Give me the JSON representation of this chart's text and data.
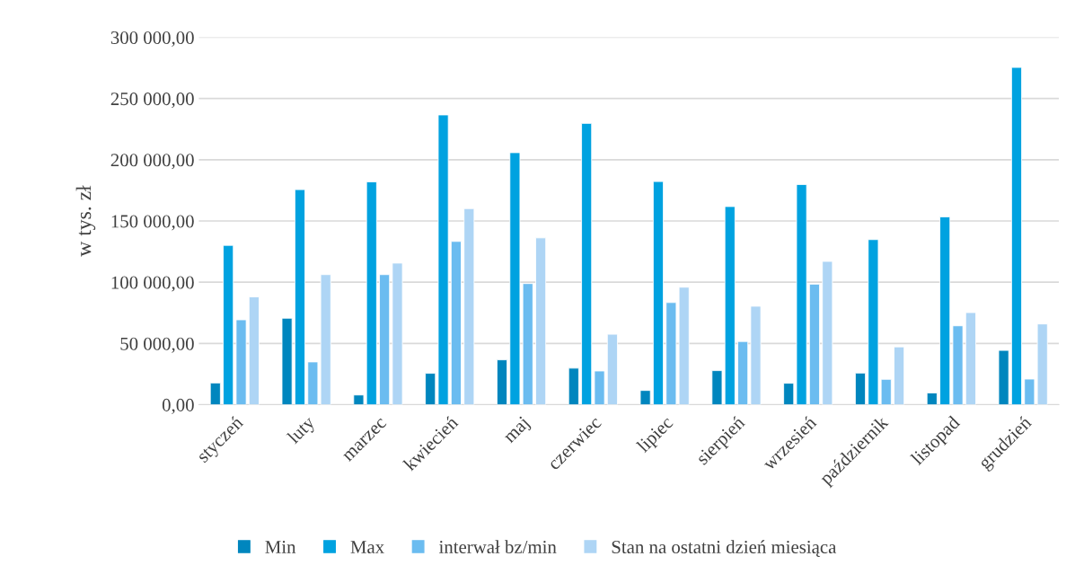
{
  "chart_data": {
    "type": "bar",
    "ylabel": "w tys. zł",
    "categories": [
      "styczeń",
      "luty",
      "marzec",
      "kwiecień",
      "maj",
      "czerwiec",
      "lipiec",
      "sierpień",
      "wrzesień",
      "październik",
      "listopad",
      "grudzień"
    ],
    "series": [
      {
        "name": "Min",
        "color": "#0086be",
        "values": [
          17700,
          70600,
          7900,
          25600,
          36600,
          29800,
          11600,
          27800,
          17500,
          25800,
          9600,
          44300
        ]
      },
      {
        "name": "Max",
        "color": "#00a2e0",
        "values": [
          130100,
          175600,
          182000,
          236600,
          205800,
          229700,
          182200,
          161800,
          179800,
          134800,
          153400,
          275400
        ]
      },
      {
        "name": "interwał bz/min",
        "color": "#6bbcf0",
        "values": [
          69300,
          34900,
          106200,
          133300,
          98900,
          27500,
          83400,
          51600,
          98400,
          20700,
          64400,
          20900
        ]
      },
      {
        "name": "Stan na ostatni dzień miesiąca",
        "color": "#aed5f5",
        "values": [
          88000,
          106200,
          115600,
          160100,
          136200,
          57500,
          95900,
          80400,
          117000,
          47200,
          75200,
          65900
        ]
      }
    ],
    "ylim": [
      0,
      300000
    ],
    "yticks": [
      {
        "value": 0,
        "label": "0,00"
      },
      {
        "value": 50000,
        "label": "50 000,00"
      },
      {
        "value": 100000,
        "label": "100 000,00"
      },
      {
        "value": 150000,
        "label": "150 000,00"
      },
      {
        "value": 200000,
        "label": "200 000,00"
      },
      {
        "value": 250000,
        "label": "250 000,00"
      },
      {
        "value": 300000,
        "label": "300 000,00"
      }
    ],
    "grid": "y",
    "legend": "bottom"
  }
}
